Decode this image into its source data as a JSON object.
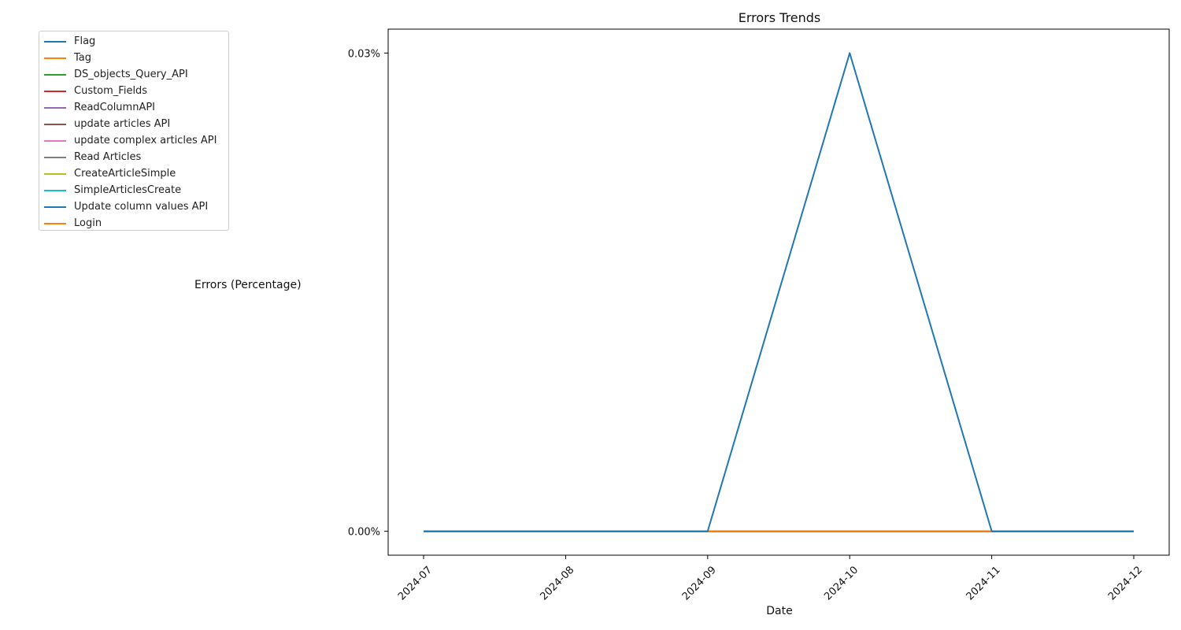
{
  "chart_data": {
    "type": "line",
    "title": "Errors Trends",
    "xlabel": "Date",
    "ylabel": "Errors (Percentage)",
    "x": [
      "2024-07",
      "2024-08",
      "2024-09",
      "2024-10",
      "2024-11",
      "2024-12"
    ],
    "ylim": [
      -0.0015,
      0.0315
    ],
    "yticks": [
      0.0,
      0.03
    ],
    "ytick_labels": [
      "0.00%",
      "0.03%"
    ],
    "grid": false,
    "legend_placement": "outside upper-left",
    "series": [
      {
        "name": "Flag",
        "color": "#1f77b4",
        "values": [
          0,
          0,
          0,
          0.03,
          0,
          0
        ]
      },
      {
        "name": "Tag",
        "color": "#ff7f0e",
        "values": [
          0,
          0,
          0,
          0,
          0,
          0
        ]
      },
      {
        "name": "DS_objects_Query_API",
        "color": "#2ca02c",
        "values": [
          0,
          0,
          0,
          0,
          0,
          0
        ]
      },
      {
        "name": "Custom_Fields",
        "color": "#d62728",
        "values": [
          0,
          0,
          0,
          0,
          0,
          0
        ]
      },
      {
        "name": "ReadColumnAPI",
        "color": "#9467bd",
        "values": [
          0,
          0,
          0,
          0,
          0,
          0
        ]
      },
      {
        "name": "update articles API",
        "color": "#8c564b",
        "values": [
          0,
          0,
          0,
          0,
          0,
          0
        ]
      },
      {
        "name": "update complex articles API",
        "color": "#e377c2",
        "values": [
          0,
          0,
          0,
          0,
          0,
          0
        ]
      },
      {
        "name": "Read Articles",
        "color": "#7f7f7f",
        "values": [
          0,
          0,
          0,
          0,
          0,
          0
        ]
      },
      {
        "name": "CreateArticleSimple",
        "color": "#bcbd22",
        "values": [
          0,
          0,
          0,
          0,
          0,
          0
        ]
      },
      {
        "name": "SimpleArticlesCreate",
        "color": "#17becf",
        "values": [
          0,
          0,
          0,
          0,
          0,
          0
        ]
      },
      {
        "name": "Update column values API",
        "color": "#1f77b4",
        "values": [
          0,
          0,
          0,
          0,
          0,
          0
        ]
      },
      {
        "name": "Login",
        "color": "#ff7f0e",
        "values": [
          0,
          0,
          0,
          0,
          0,
          0
        ]
      }
    ]
  }
}
